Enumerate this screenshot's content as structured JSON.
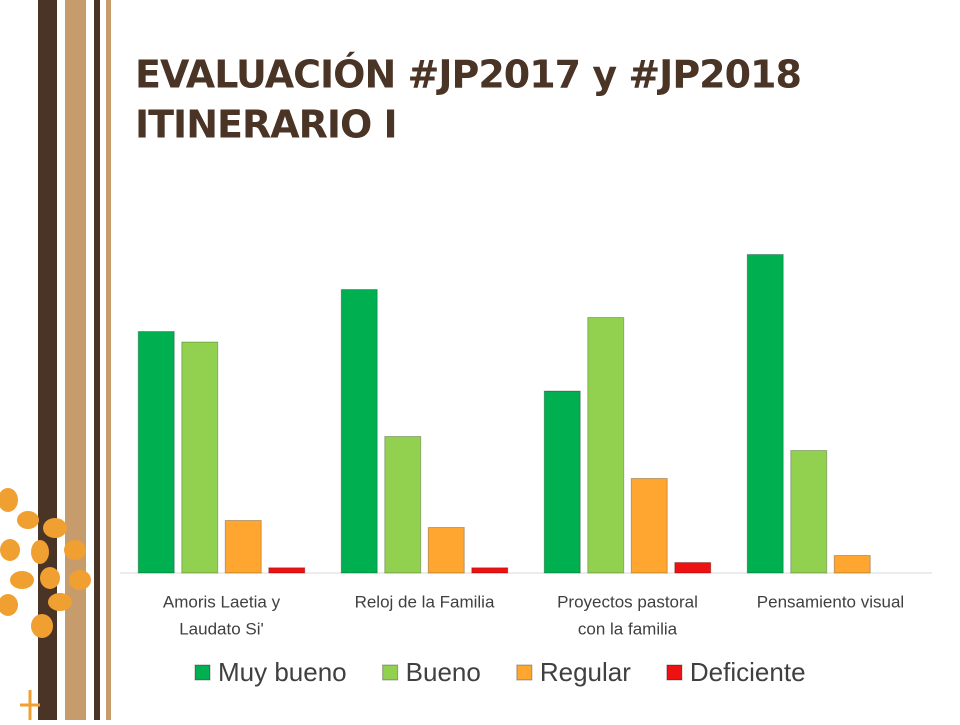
{
  "chart_data": {
    "type": "bar",
    "title": [
      "EVALUACIÓN #JP2017 y #JP2018",
      "ITINERARIO I"
    ],
    "categories": [
      [
        "Amoris Laetia y",
        "Laudato Si'"
      ],
      [
        "Reloj de la Familia"
      ],
      [
        "Proyectos pastoral",
        "con la familia"
      ],
      [
        "Pensamiento visual"
      ]
    ],
    "series": [
      {
        "name": "Muy bueno",
        "color": "#00b050",
        "values": [
          69,
          81,
          52,
          91
        ]
      },
      {
        "name": "Bueno",
        "color": "#92d050",
        "values": [
          66,
          39,
          73,
          35
        ]
      },
      {
        "name": "Regular",
        "color": "#ffa630",
        "values": [
          15,
          13,
          27,
          5
        ]
      },
      {
        "name": "Deficiente",
        "color": "#ee1111",
        "values": [
          1.5,
          1.5,
          3,
          0
        ]
      }
    ],
    "ylim": [
      0,
      100
    ],
    "grid": false,
    "legend": "bottom"
  }
}
